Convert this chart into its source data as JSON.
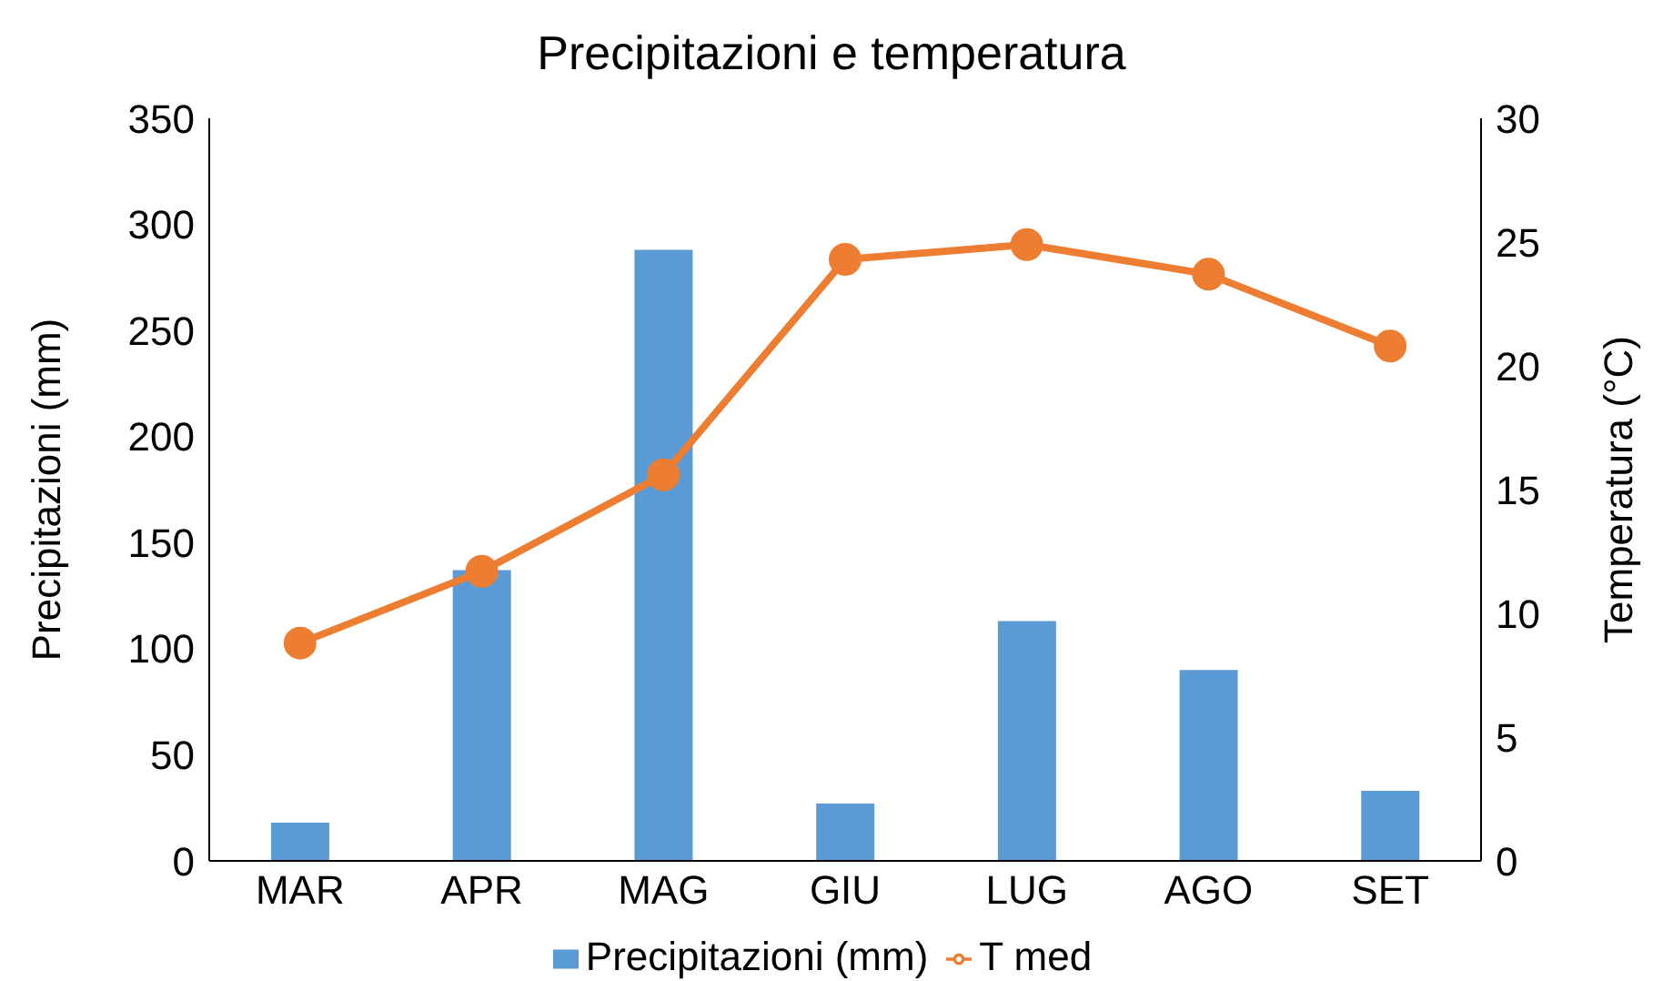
{
  "chart_data": {
    "type": "bar",
    "title": "Precipitazioni e temperatura",
    "ylabel": "Precipitazioni (mm)",
    "y2label": "Temperatura (°C)",
    "categories": [
      "MAR",
      "APR",
      "MAG",
      "GIU",
      "LUG",
      "AGO",
      "SET"
    ],
    "series": [
      {
        "name": "Precipitazioni (mm)",
        "color": "#5b9bd5",
        "values": [
          18,
          137,
          288,
          27,
          113,
          90,
          33
        ]
      },
      {
        "name": "T med",
        "type": "line",
        "axis": "y2",
        "color": "#ed7d31",
        "marker": "circle",
        "values": [
          8.8,
          11.7,
          15.6,
          24.3,
          24.9,
          23.7,
          20.8
        ]
      }
    ],
    "ylim": [
      0,
      350
    ],
    "yticks": [
      0,
      50,
      100,
      150,
      200,
      250,
      300,
      350
    ],
    "y2lim": [
      0,
      30
    ],
    "y2ticks": [
      0,
      5,
      10,
      15,
      20,
      25,
      30
    ],
    "grid": false,
    "legend": "bottom"
  }
}
